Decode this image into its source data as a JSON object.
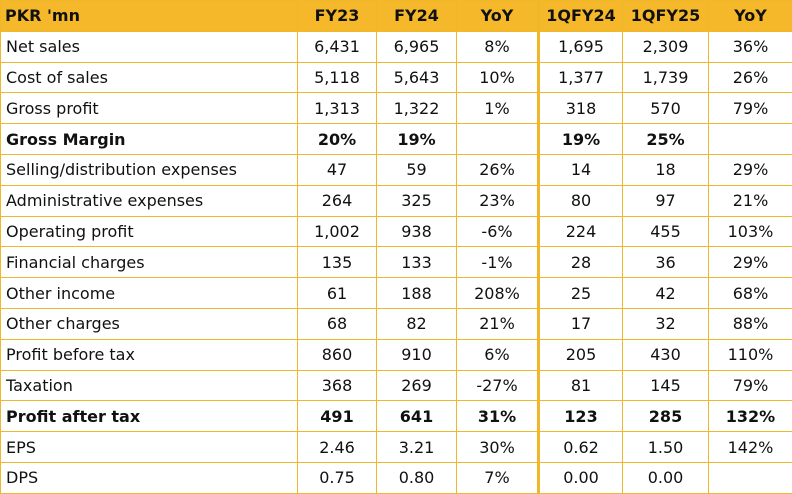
{
  "header": [
    "PKR 'mn",
    "FY23",
    "FY24",
    "YoY",
    "1QFY24",
    "1QFY25",
    "YoY"
  ],
  "rows": [
    {
      "bold": false,
      "cells": [
        "Net sales",
        "6,431",
        "6,965",
        "8%",
        "1,695",
        "2,309",
        "36%"
      ]
    },
    {
      "bold": false,
      "cells": [
        "Cost of sales",
        "5,118",
        "5,643",
        "10%",
        "1,377",
        "1,739",
        "26%"
      ]
    },
    {
      "bold": false,
      "cells": [
        "Gross profit",
        "1,313",
        "1,322",
        "1%",
        "318",
        "570",
        "79%"
      ]
    },
    {
      "bold": true,
      "cells": [
        "Gross Margin",
        "20%",
        "19%",
        "",
        "19%",
        "25%",
        ""
      ]
    },
    {
      "bold": false,
      "cells": [
        "Selling/distribution expenses",
        "47",
        "59",
        "26%",
        "14",
        "18",
        "29%"
      ]
    },
    {
      "bold": false,
      "cells": [
        "Administrative expenses",
        "264",
        "325",
        "23%",
        "80",
        "97",
        "21%"
      ]
    },
    {
      "bold": false,
      "cells": [
        "Operating profit",
        "1,002",
        "938",
        "-6%",
        "224",
        "455",
        "103%"
      ]
    },
    {
      "bold": false,
      "cells": [
        "Financial charges",
        "135",
        "133",
        "-1%",
        "28",
        "36",
        "29%"
      ]
    },
    {
      "bold": false,
      "cells": [
        "Other income",
        "61",
        "188",
        "208%",
        "25",
        "42",
        "68%"
      ]
    },
    {
      "bold": false,
      "cells": [
        "Other charges",
        "68",
        "82",
        "21%",
        "17",
        "32",
        "88%"
      ]
    },
    {
      "bold": false,
      "cells": [
        "Profit before tax",
        "860",
        "910",
        "6%",
        "205",
        "430",
        "110%"
      ]
    },
    {
      "bold": false,
      "cells": [
        "Taxation",
        "368",
        "269",
        "-27%",
        "81",
        "145",
        "79%"
      ]
    },
    {
      "bold": true,
      "cells": [
        "Profit after tax",
        "491",
        "641",
        "31%",
        "123",
        "285",
        "132%"
      ]
    },
    {
      "bold": false,
      "cells": [
        "EPS",
        "2.46",
        "3.21",
        "30%",
        "0.62",
        "1.50",
        "142%"
      ]
    },
    {
      "bold": false,
      "cells": [
        "DPS",
        "0.75",
        "0.80",
        "7%",
        "0.00",
        "0.00",
        ""
      ]
    }
  ],
  "colors": {
    "header_bg": "#f5b82a",
    "border": "#f0b72b",
    "text": "#111111"
  }
}
